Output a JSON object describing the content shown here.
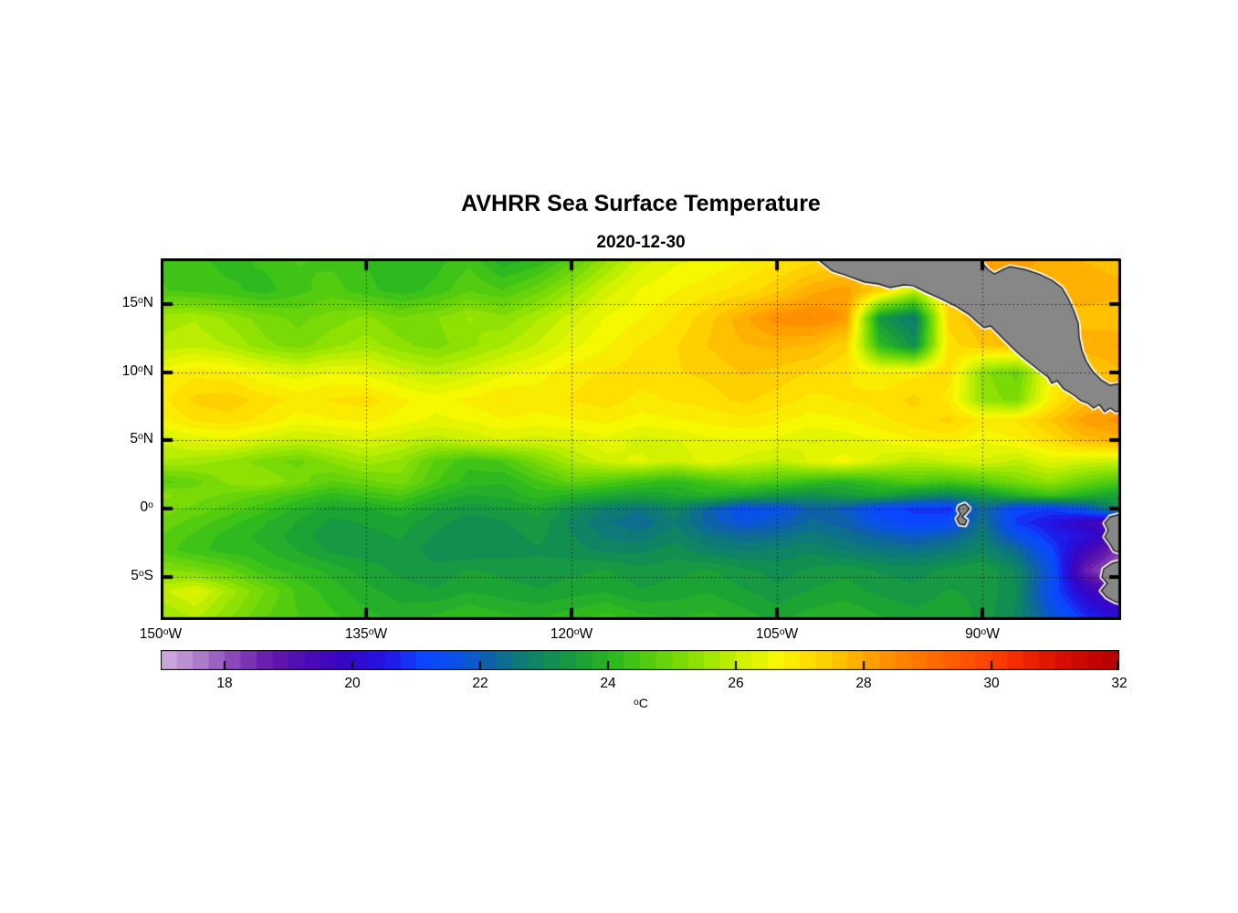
{
  "title": "AVHRR Sea Surface Temperature",
  "subtitle": "2020-12-30",
  "axes": {
    "lat_ticks": [
      {
        "value": 15,
        "text": "15",
        "sup": "o",
        "suffix": "N"
      },
      {
        "value": 10,
        "text": "10",
        "sup": "o",
        "suffix": "N"
      },
      {
        "value": 5,
        "text": "5",
        "sup": "o",
        "suffix": "N"
      },
      {
        "value": 0,
        "text": "0",
        "sup": "o",
        "suffix": ""
      },
      {
        "value": -5,
        "text": "5",
        "sup": "o",
        "suffix": "S"
      }
    ],
    "lon_ticks": [
      {
        "value": -150,
        "text": "150",
        "sup": "o",
        "suffix": "W"
      },
      {
        "value": -135,
        "text": "135",
        "sup": "o",
        "suffix": "W"
      },
      {
        "value": -120,
        "text": "120",
        "sup": "o",
        "suffix": "W"
      },
      {
        "value": -105,
        "text": "105",
        "sup": "o",
        "suffix": "W"
      },
      {
        "value": -90,
        "text": "90",
        "sup": "o",
        "suffix": "W"
      }
    ]
  },
  "colorbar": {
    "min": 17,
    "max": 32,
    "tick_values": [
      18,
      20,
      22,
      24,
      26,
      28,
      30,
      32
    ],
    "segment_step_c": 0.25,
    "unit_sup": "o",
    "unit": "C"
  },
  "chart_data": {
    "type": "heatmap",
    "title": "AVHRR Sea Surface Temperature",
    "date": "2020-12-30",
    "lon_range": [
      -150,
      -79.9
    ],
    "lat_range": [
      -8.16,
      18.33
    ],
    "grid_on": true,
    "grid_lats_deg": [
      18.33,
      16,
      14,
      12,
      10,
      8,
      6.5,
      5,
      3.5,
      2,
      1,
      0,
      -1,
      -2,
      -3,
      -4.5,
      -6,
      -8.16
    ],
    "grid_lons_deg": [
      -150,
      -147.5,
      -145,
      -142.5,
      -140,
      -137.5,
      -135,
      -132.5,
      -130,
      -127.5,
      -125,
      -122.5,
      -120,
      -117.5,
      -115,
      -112.5,
      -110,
      -107.5,
      -105,
      -102.5,
      -100,
      -97.5,
      -95,
      -92.5,
      -90,
      -87.5,
      -85,
      -82.5,
      -80
    ],
    "sst_c": [
      [
        24.3,
        24.2,
        24.0,
        24.2,
        24.4,
        24.3,
        24.1,
        23.9,
        24.0,
        24.3,
        23.7,
        23.9,
        24.5,
        25.3,
        26.0,
        26.3,
        26.4,
        26.6,
        26.8,
        27.0,
        27.2,
        27.5,
        27.6,
        27.8,
        28.0,
        28.0,
        27.8,
        27.6,
        27.5
      ],
      [
        24.4,
        24.3,
        24.2,
        24.0,
        24.3,
        24.5,
        24.2,
        24.0,
        24.2,
        24.6,
        24.4,
        24.8,
        25.4,
        26.0,
        26.4,
        26.6,
        26.8,
        27.0,
        27.3,
        27.8,
        28.0,
        27.2,
        25.8,
        27.3,
        27.6,
        27.7,
        27.8,
        27.8,
        27.7
      ],
      [
        25.5,
        25.6,
        25.3,
        25.0,
        24.8,
        25.0,
        25.2,
        24.9,
        25.1,
        25.4,
        25.2,
        25.6,
        26.0,
        26.4,
        26.6,
        26.9,
        27.3,
        27.8,
        28.3,
        28.4,
        28.1,
        23.2,
        22.5,
        27.2,
        27.6,
        27.7,
        27.5,
        27.5,
        27.4
      ],
      [
        25.7,
        25.8,
        25.6,
        25.2,
        25.0,
        25.3,
        25.5,
        25.2,
        25.0,
        25.3,
        25.6,
        25.9,
        26.3,
        26.6,
        26.9,
        27.1,
        27.4,
        27.6,
        27.7,
        27.6,
        27.2,
        24.0,
        23.0,
        27.0,
        27.4,
        27.5,
        27.6,
        27.8,
        27.9
      ],
      [
        26.5,
        26.8,
        26.7,
        26.4,
        26.2,
        26.4,
        26.3,
        26.0,
        25.8,
        26.0,
        26.3,
        26.5,
        26.8,
        26.9,
        27.0,
        27.1,
        27.2,
        27.4,
        27.3,
        27.1,
        26.9,
        26.6,
        26.8,
        27.0,
        25.2,
        24.8,
        26.5,
        27.2,
        27.6
      ],
      [
        26.8,
        27.2,
        27.3,
        27.0,
        26.8,
        26.9,
        27.0,
        26.7,
        26.5,
        26.7,
        26.9,
        26.8,
        26.9,
        27.0,
        26.8,
        26.9,
        27.0,
        27.2,
        27.0,
        26.8,
        26.9,
        27.0,
        27.2,
        26.8,
        25.3,
        25.0,
        26.8,
        27.5,
        27.9
      ],
      [
        26.6,
        26.9,
        27.0,
        26.8,
        26.5,
        26.6,
        26.7,
        26.5,
        26.3,
        26.4,
        26.6,
        26.5,
        26.6,
        26.7,
        26.5,
        26.6,
        26.7,
        26.8,
        26.7,
        26.5,
        26.6,
        26.8,
        27.0,
        27.2,
        26.8,
        26.9,
        27.4,
        28.0,
        28.2
      ],
      [
        25.9,
        26.2,
        26.3,
        26.0,
        25.8,
        25.9,
        26.1,
        25.9,
        25.7,
        25.9,
        26.1,
        26.0,
        26.1,
        26.3,
        26.0,
        26.1,
        26.3,
        26.4,
        26.3,
        26.1,
        26.2,
        26.4,
        26.6,
        26.7,
        26.4,
        26.6,
        27.0,
        27.5,
        27.7
      ],
      [
        25.6,
        25.5,
        25.3,
        25.0,
        24.8,
        25.2,
        25.5,
        25.3,
        24.6,
        24.2,
        24.4,
        25.0,
        25.6,
        26.0,
        26.2,
        25.9,
        26.3,
        26.0,
        25.8,
        26.2,
        26.5,
        26.0,
        25.7,
        25.9,
        26.1,
        25.8,
        26.2,
        26.0,
        25.9
      ],
      [
        24.5,
        24.8,
        25.2,
        25.4,
        25.0,
        24.6,
        24.8,
        25.0,
        24.4,
        24.0,
        23.9,
        24.3,
        24.7,
        24.5,
        24.2,
        24.0,
        24.3,
        24.6,
        24.4,
        24.1,
        23.9,
        24.2,
        24.5,
        24.3,
        24.6,
        25.0,
        25.3,
        24.8,
        24.4
      ],
      [
        25.2,
        25.0,
        24.8,
        24.6,
        24.3,
        24.0,
        24.2,
        24.4,
        23.9,
        23.6,
        23.7,
        24.0,
        23.8,
        23.6,
        23.4,
        23.6,
        23.8,
        23.5,
        23.2,
        23.0,
        23.3,
        23.5,
        23.0,
        22.8,
        23.2,
        23.8,
        24.2,
        23.8,
        23.4
      ],
      [
        25.0,
        24.8,
        24.5,
        24.2,
        23.8,
        23.5,
        23.6,
        23.8,
        23.4,
        23.2,
        23.3,
        23.5,
        23.0,
        22.6,
        22.4,
        22.8,
        22.0,
        21.3,
        21.4,
        22.0,
        21.8,
        21.0,
        20.8,
        20.7,
        22.2,
        21.0,
        20.9,
        21.5,
        23.0
      ],
      [
        24.8,
        24.5,
        24.2,
        23.9,
        23.6,
        23.3,
        23.4,
        23.5,
        23.2,
        23.0,
        23.1,
        23.3,
        22.8,
        22.4,
        22.2,
        22.6,
        22.0,
        21.6,
        21.8,
        22.2,
        22.0,
        21.4,
        21.0,
        21.2,
        22.4,
        20.8,
        20.3,
        19.6,
        18.8
      ],
      [
        24.6,
        24.3,
        24.0,
        23.8,
        23.5,
        23.2,
        23.3,
        23.4,
        23.1,
        23.0,
        23.0,
        23.2,
        22.9,
        22.6,
        22.5,
        22.8,
        22.4,
        22.2,
        22.3,
        22.5,
        22.3,
        22.0,
        21.8,
        22.0,
        22.6,
        21.5,
        20.6,
        20.2,
        19.2
      ],
      [
        24.5,
        24.2,
        24.0,
        23.9,
        23.6,
        23.3,
        23.2,
        23.3,
        23.0,
        22.9,
        23.0,
        23.1,
        23.0,
        22.8,
        22.8,
        23.0,
        22.7,
        22.6,
        22.7,
        22.8,
        22.6,
        22.4,
        22.3,
        22.5,
        22.8,
        22.2,
        21.0,
        19.5,
        18.2
      ],
      [
        25.2,
        25.0,
        24.7,
        24.2,
        24.0,
        23.8,
        23.5,
        23.3,
        23.2,
        23.4,
        23.3,
        23.2,
        23.3,
        23.4,
        23.2,
        23.3,
        23.4,
        23.2,
        23.0,
        23.2,
        23.3,
        23.1,
        23.0,
        23.2,
        23.4,
        22.8,
        21.5,
        18.5,
        17.4
      ],
      [
        25.8,
        26.2,
        25.5,
        24.9,
        24.3,
        24.0,
        23.7,
        23.5,
        23.4,
        23.6,
        23.5,
        23.4,
        23.5,
        23.6,
        23.4,
        23.5,
        23.6,
        23.4,
        23.2,
        23.4,
        23.5,
        23.3,
        23.2,
        23.4,
        23.3,
        22.9,
        21.2,
        19.8,
        18.8
      ],
      [
        25.3,
        25.6,
        25.1,
        24.6,
        24.4,
        24.2,
        24.0,
        23.8,
        24.0,
        24.2,
        24.0,
        23.9,
        24.1,
        24.3,
        24.0,
        23.9,
        24.0,
        23.8,
        23.6,
        23.8,
        23.9,
        23.7,
        23.5,
        23.6,
        23.3,
        22.8,
        21.8,
        20.8,
        20.2
      ]
    ],
    "colormap_stops": [
      [
        17.0,
        "#c9a6da"
      ],
      [
        17.5,
        "#ad7cc9"
      ],
      [
        18.0,
        "#8a48b8"
      ],
      [
        18.6,
        "#6318ac"
      ],
      [
        19.2,
        "#4a0ab4"
      ],
      [
        19.8,
        "#3406c8"
      ],
      [
        20.4,
        "#2214e4"
      ],
      [
        21.0,
        "#0b46ff"
      ],
      [
        21.6,
        "#0a55e0"
      ],
      [
        22.0,
        "#0e61a8"
      ],
      [
        22.5,
        "#0d7a78"
      ],
      [
        23.0,
        "#108f50"
      ],
      [
        23.5,
        "#1ba334"
      ],
      [
        24.0,
        "#2eba1e"
      ],
      [
        24.5,
        "#53cc10"
      ],
      [
        25.0,
        "#79da06"
      ],
      [
        25.5,
        "#a2e800"
      ],
      [
        26.0,
        "#d2f200"
      ],
      [
        26.5,
        "#f6f800"
      ],
      [
        27.0,
        "#ffdf00"
      ],
      [
        27.5,
        "#ffc000"
      ],
      [
        28.0,
        "#ff9f00"
      ],
      [
        28.5,
        "#ff8200"
      ],
      [
        29.0,
        "#ff6900"
      ],
      [
        29.5,
        "#ff5200"
      ],
      [
        30.0,
        "#fb3a00"
      ],
      [
        30.5,
        "#ea2000"
      ],
      [
        31.0,
        "#d60d00"
      ],
      [
        31.5,
        "#c20400"
      ],
      [
        32.0,
        "#ad0000"
      ]
    ],
    "land_color": "#878787",
    "land_outline_color": "#1c1c1c",
    "land_fringe_color": "#ffffff",
    "land_polygons": {
      "central_america": [
        [
          -102.2,
          18.4
        ],
        [
          -100.93,
          17.4
        ],
        [
          -100.07,
          17.13
        ],
        [
          -98.6,
          16.59
        ],
        [
          -97.6,
          16.46
        ],
        [
          -96.73,
          16.19
        ],
        [
          -95.73,
          16.39
        ],
        [
          -95.07,
          16.33
        ],
        [
          -94.13,
          15.86
        ],
        [
          -93.07,
          15.39
        ],
        [
          -91.87,
          14.79
        ],
        [
          -90.93,
          14.19
        ],
        [
          -90.27,
          13.58
        ],
        [
          -89.87,
          13.25
        ],
        [
          -89.4,
          13.38
        ],
        [
          -88.93,
          12.92
        ],
        [
          -88.4,
          12.38
        ],
        [
          -87.73,
          11.71
        ],
        [
          -87.07,
          11.11
        ],
        [
          -86.4,
          10.57
        ],
        [
          -85.73,
          10.04
        ],
        [
          -85.2,
          9.64
        ],
        [
          -84.93,
          9.17
        ],
        [
          -84.53,
          9.37
        ],
        [
          -84.07,
          8.77
        ],
        [
          -83.6,
          8.5
        ],
        [
          -83.2,
          8.23
        ],
        [
          -82.8,
          7.9
        ],
        [
          -82.27,
          7.7
        ],
        [
          -81.87,
          7.36
        ],
        [
          -81.47,
          7.63
        ],
        [
          -81.07,
          7.09
        ],
        [
          -80.67,
          7.36
        ],
        [
          -80.27,
          7.09
        ],
        [
          -79.6,
          7.22
        ],
        [
          -79.6,
          9.23
        ],
        [
          -80.67,
          9.03
        ],
        [
          -81.33,
          9.43
        ],
        [
          -81.93,
          10.03
        ],
        [
          -82.4,
          10.77
        ],
        [
          -82.73,
          11.57
        ],
        [
          -82.93,
          12.51
        ],
        [
          -83.0,
          13.58
        ],
        [
          -83.33,
          14.52
        ],
        [
          -83.73,
          15.39
        ],
        [
          -84.2,
          16.19
        ],
        [
          -84.93,
          16.73
        ],
        [
          -85.87,
          17.19
        ],
        [
          -86.93,
          17.53
        ],
        [
          -88.0,
          17.73
        ],
        [
          -88.6,
          17.46
        ],
        [
          -89.13,
          17.19
        ],
        [
          -89.6,
          17.53
        ],
        [
          -90.0,
          18.0
        ],
        [
          -90.2,
          18.4
        ]
      ],
      "ecuador": [
        [
          -79.6,
          -0.33
        ],
        [
          -80.67,
          -0.6
        ],
        [
          -81.07,
          -1.07
        ],
        [
          -80.8,
          -1.6
        ],
        [
          -81.07,
          -2.07
        ],
        [
          -80.67,
          -2.61
        ],
        [
          -80.4,
          -3.08
        ],
        [
          -79.6,
          -3.34
        ]
      ],
      "peru": [
        [
          -79.6,
          -3.75
        ],
        [
          -80.53,
          -4.01
        ],
        [
          -81.13,
          -4.41
        ],
        [
          -81.27,
          -5.02
        ],
        [
          -80.87,
          -5.48
        ],
        [
          -81.33,
          -6.02
        ],
        [
          -80.93,
          -6.49
        ],
        [
          -80.33,
          -6.82
        ],
        [
          -79.6,
          -7.02
        ]
      ],
      "galapagos": [
        [
          -91.67,
          0.2
        ],
        [
          -91.27,
          0.34
        ],
        [
          -90.93,
          0.0
        ],
        [
          -91.2,
          -0.33
        ],
        [
          -91.47,
          -0.6
        ],
        [
          -91.13,
          -0.87
        ],
        [
          -91.27,
          -1.2
        ],
        [
          -91.67,
          -1.14
        ],
        [
          -91.87,
          -0.74
        ],
        [
          -91.6,
          -0.4
        ],
        [
          -91.8,
          -0.07
        ]
      ]
    }
  },
  "layout_colors": {
    "axis": "#000000",
    "background": "#ffffff"
  }
}
